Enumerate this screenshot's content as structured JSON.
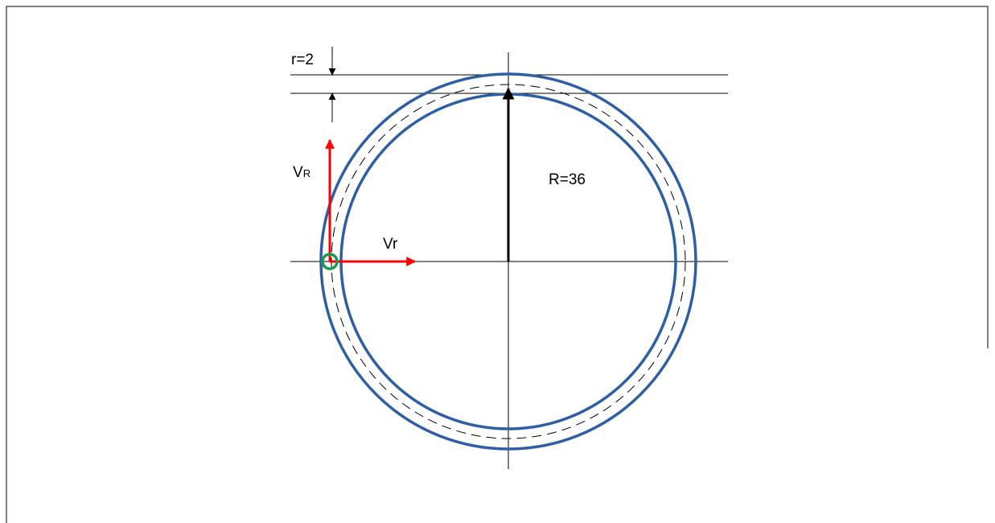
{
  "labels": {
    "small_radius": "r=2",
    "large_radius": "R=36",
    "velocity_R_main": "V",
    "velocity_R_sub": "R",
    "velocity_r": "Vr"
  }
}
